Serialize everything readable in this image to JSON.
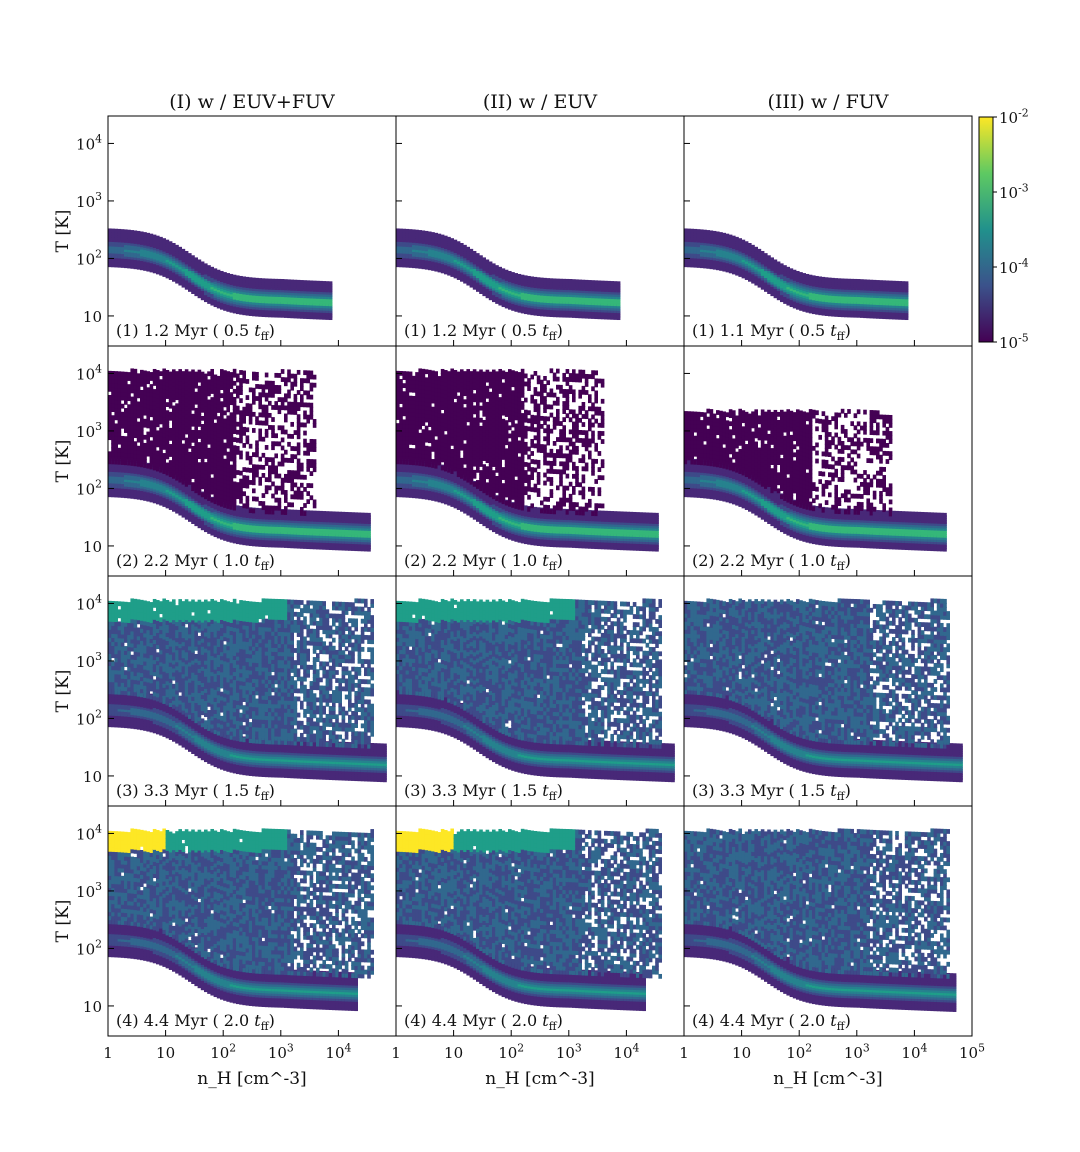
{
  "figure": {
    "column_titles": [
      "(I) w / EUV+FUV",
      "(II) w / EUV",
      "(III) w / FUV"
    ],
    "ylabel": "T [K]",
    "xlabel": "n_H [cm^-3]"
  },
  "chart_data": {
    "type": "heatmap",
    "description": "2D histograms of gas temperature vs hydrogen number density",
    "x_axis": {
      "label": "n_H [cm^-3]",
      "scale": "log",
      "range": [
        1,
        100000
      ],
      "ticks": [
        1,
        10,
        100,
        1000,
        10000,
        100000
      ],
      "tick_labels": [
        "1",
        "10",
        "10^2",
        "10^3",
        "10^4",
        "10^5"
      ]
    },
    "y_axis": {
      "label": "T [K]",
      "scale": "log",
      "range": [
        3,
        30000
      ],
      "ticks": [
        10,
        100,
        1000,
        10000
      ],
      "tick_labels": [
        "10",
        "10^2",
        "10^3",
        "10^4"
      ]
    },
    "colorbar": {
      "scale": "log",
      "range": [
        1e-05,
        0.01
      ],
      "ticks": [
        1e-05,
        0.0001,
        0.001,
        0.01
      ],
      "tick_labels": [
        "10^-5",
        "10^-4",
        "10^-3",
        "10^-2"
      ],
      "colormap": "viridis",
      "colors": [
        "#440154",
        "#3b528b",
        "#21918c",
        "#5ec962",
        "#fde725"
      ]
    },
    "panels": [
      {
        "row": 1,
        "col": 1,
        "label": "(1) 1.2 Myr ( 0.5 t_ff)",
        "label_parts": {
          "prefix": "(1) 1.2 Myr ( 0.5 ",
          "t": "t",
          "sub": "ff",
          "suffix": ")"
        }
      },
      {
        "row": 1,
        "col": 2,
        "label": "(1) 1.2 Myr ( 0.5 t_ff)",
        "label_parts": {
          "prefix": "(1) 1.2 Myr ( 0.5 ",
          "t": "t",
          "sub": "ff",
          "suffix": ")"
        }
      },
      {
        "row": 1,
        "col": 3,
        "label": "(1) 1.1 Myr ( 0.5 t_ff)",
        "label_parts": {
          "prefix": "(1) 1.1 Myr ( 0.5 ",
          "t": "t",
          "sub": "ff",
          "suffix": ")"
        }
      },
      {
        "row": 2,
        "col": 1,
        "label": "(2) 2.2 Myr ( 1.0 t_ff)",
        "label_parts": {
          "prefix": "(2) 2.2 Myr ( 1.0 ",
          "t": "t",
          "sub": "ff",
          "suffix": ")"
        }
      },
      {
        "row": 2,
        "col": 2,
        "label": "(2) 2.2 Myr ( 1.0 t_ff)",
        "label_parts": {
          "prefix": "(2) 2.2 Myr ( 1.0 ",
          "t": "t",
          "sub": "ff",
          "suffix": ")"
        }
      },
      {
        "row": 2,
        "col": 3,
        "label": "(2) 2.2 Myr ( 1.0 t_ff)",
        "label_parts": {
          "prefix": "(2) 2.2 Myr ( 1.0 ",
          "t": "t",
          "sub": "ff",
          "suffix": ")"
        }
      },
      {
        "row": 3,
        "col": 1,
        "label": "(3) 3.3 Myr ( 1.5 t_ff)",
        "label_parts": {
          "prefix": "(3) 3.3 Myr ( 1.5 ",
          "t": "t",
          "sub": "ff",
          "suffix": ")"
        }
      },
      {
        "row": 3,
        "col": 2,
        "label": "(3) 3.3 Myr ( 1.5 t_ff)",
        "label_parts": {
          "prefix": "(3) 3.3 Myr ( 1.5 ",
          "t": "t",
          "sub": "ff",
          "suffix": ")"
        }
      },
      {
        "row": 3,
        "col": 3,
        "label": "(3) 3.3 Myr ( 1.5 t_ff)",
        "label_parts": {
          "prefix": "(3) 3.3 Myr ( 1.5 ",
          "t": "t",
          "sub": "ff",
          "suffix": ")"
        }
      },
      {
        "row": 4,
        "col": 1,
        "label": "(4) 4.4 Myr ( 2.0 t_ff)",
        "label_parts": {
          "prefix": "(4) 4.4 Myr ( 2.0 ",
          "t": "t",
          "sub": "ff",
          "suffix": ")"
        }
      },
      {
        "row": 4,
        "col": 2,
        "label": "(4) 4.4 Myr ( 2.0 t_ff)",
        "label_parts": {
          "prefix": "(4) 4.4 Myr ( 2.0 ",
          "t": "t",
          "sub": "ff",
          "suffix": ")"
        }
      },
      {
        "row": 4,
        "col": 3,
        "label": "(4) 4.4 Myr ( 2.0 t_ff)",
        "label_parts": {
          "prefix": "(4) 4.4 Myr ( 2.0 ",
          "t": "t",
          "sub": "ff",
          "suffix": ")"
        }
      }
    ]
  }
}
